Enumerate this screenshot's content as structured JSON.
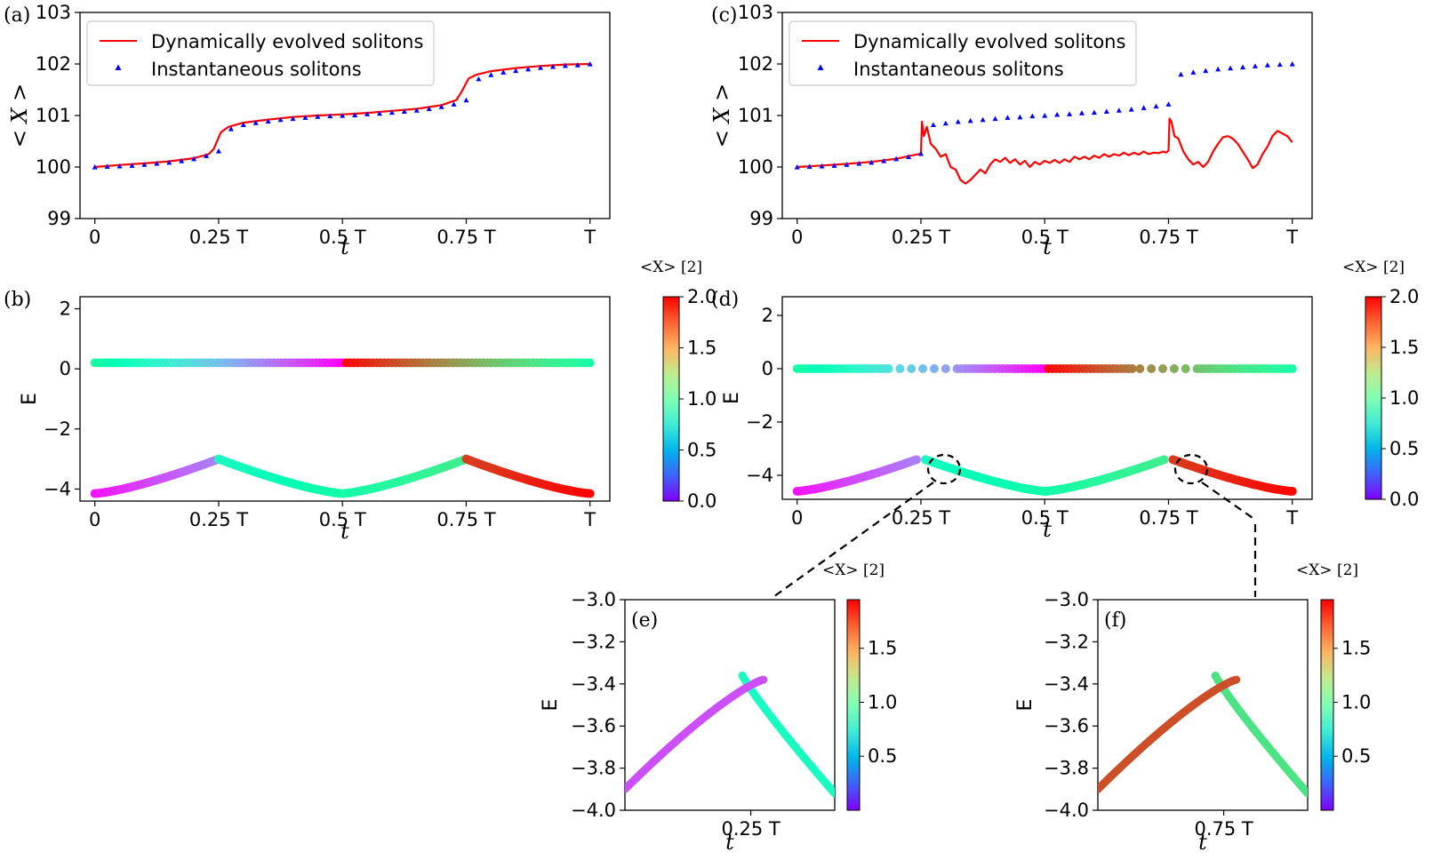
{
  "chart_data": [
    {
      "id": "a",
      "type": "line",
      "panel_label": "(a)",
      "xlabel": "t",
      "ylabel": "< X >",
      "ylim": [
        99,
        103
      ],
      "xlim": [
        -0.03,
        1.04
      ],
      "xticks": [
        0,
        0.25,
        0.5,
        0.75,
        1.0
      ],
      "xtick_labels": [
        "0",
        "0.25 T",
        "0.5 T",
        "0.75 T",
        "T"
      ],
      "yticks": [
        99,
        100,
        101,
        102,
        103
      ],
      "ytick_labels": [
        "99",
        "100",
        "101",
        "102",
        "103"
      ],
      "legend": {
        "position": "upper-left",
        "entries": [
          "Dynamically evolved solitons",
          "Instantaneous solitons"
        ]
      },
      "series": [
        {
          "name": "Dynamically evolved solitons",
          "style": "line",
          "color": "#ff0000",
          "x": [
            0,
            0.05,
            0.1,
            0.15,
            0.2,
            0.23,
            0.24,
            0.255,
            0.27,
            0.3,
            0.35,
            0.4,
            0.45,
            0.5,
            0.55,
            0.6,
            0.65,
            0.7,
            0.73,
            0.74,
            0.755,
            0.77,
            0.8,
            0.85,
            0.9,
            0.95,
            1.0
          ],
          "y": [
            100.0,
            100.04,
            100.07,
            100.11,
            100.17,
            100.25,
            100.35,
            100.68,
            100.78,
            100.86,
            100.92,
            100.97,
            101.0,
            101.02,
            101.05,
            101.09,
            101.13,
            101.2,
            101.3,
            101.45,
            101.72,
            101.79,
            101.86,
            101.92,
            101.96,
            101.99,
            102.0
          ]
        },
        {
          "name": "Instantaneous solitons",
          "style": "triangle",
          "color": "#0000ff",
          "x": [
            0,
            0.025,
            0.05,
            0.075,
            0.1,
            0.125,
            0.15,
            0.175,
            0.2,
            0.225,
            0.25,
            0.275,
            0.3,
            0.325,
            0.35,
            0.375,
            0.4,
            0.425,
            0.45,
            0.475,
            0.5,
            0.525,
            0.55,
            0.575,
            0.6,
            0.625,
            0.65,
            0.675,
            0.7,
            0.725,
            0.75,
            0.775,
            0.8,
            0.825,
            0.85,
            0.875,
            0.9,
            0.925,
            0.95,
            0.975,
            1.0
          ],
          "y": [
            100.0,
            100.01,
            100.02,
            100.03,
            100.05,
            100.07,
            100.09,
            100.12,
            100.16,
            100.22,
            100.31,
            100.74,
            100.82,
            100.86,
            100.89,
            100.92,
            100.94,
            100.96,
            100.98,
            100.99,
            101.0,
            101.01,
            101.03,
            101.04,
            101.06,
            101.08,
            101.1,
            101.13,
            101.17,
            101.22,
            101.3,
            101.71,
            101.79,
            101.84,
            101.87,
            101.9,
            101.93,
            101.95,
            101.97,
            101.98,
            102.0
          ]
        }
      ]
    },
    {
      "id": "c",
      "type": "line",
      "panel_label": "(c)",
      "xlabel": "t",
      "ylabel": "< X >",
      "ylim": [
        99,
        103
      ],
      "xlim": [
        -0.03,
        1.04
      ],
      "xticks": [
        0,
        0.25,
        0.5,
        0.75,
        1.0
      ],
      "xtick_labels": [
        "0",
        "0.25 T",
        "0.5 T",
        "0.75 T",
        "T"
      ],
      "yticks": [
        99,
        100,
        101,
        102,
        103
      ],
      "ytick_labels": [
        "99",
        "100",
        "101",
        "102",
        "103"
      ],
      "legend": {
        "position": "upper-left",
        "entries": [
          "Dynamically evolved solitons",
          "Instantaneous solitons"
        ]
      },
      "series": [
        {
          "name": "Dynamically evolved solitons",
          "style": "line",
          "color": "#ff0000",
          "x": [
            0,
            0.05,
            0.1,
            0.15,
            0.2,
            0.23,
            0.25,
            0.252,
            0.256,
            0.262,
            0.27,
            0.28,
            0.29,
            0.3,
            0.31,
            0.32,
            0.33,
            0.34,
            0.35,
            0.36,
            0.37,
            0.38,
            0.39,
            0.4,
            0.41,
            0.42,
            0.43,
            0.44,
            0.45,
            0.46,
            0.47,
            0.48,
            0.49,
            0.5,
            0.51,
            0.52,
            0.53,
            0.54,
            0.55,
            0.56,
            0.57,
            0.58,
            0.59,
            0.6,
            0.61,
            0.62,
            0.63,
            0.64,
            0.65,
            0.66,
            0.67,
            0.68,
            0.69,
            0.7,
            0.71,
            0.72,
            0.73,
            0.74,
            0.745,
            0.75,
            0.752,
            0.756,
            0.762,
            0.77,
            0.78,
            0.79,
            0.8,
            0.81,
            0.82,
            0.83,
            0.84,
            0.85,
            0.86,
            0.87,
            0.88,
            0.89,
            0.9,
            0.91,
            0.92,
            0.93,
            0.94,
            0.95,
            0.96,
            0.97,
            0.98,
            0.99,
            1.0
          ],
          "y": [
            100.0,
            100.03,
            100.06,
            100.1,
            100.16,
            100.22,
            100.26,
            100.88,
            100.6,
            100.78,
            100.45,
            100.35,
            100.2,
            100.25,
            100.0,
            99.95,
            99.75,
            99.68,
            99.75,
            99.85,
            99.95,
            99.88,
            100.05,
            100.15,
            100.1,
            100.18,
            100.08,
            100.15,
            100.05,
            100.12,
            100.0,
            100.1,
            100.05,
            100.12,
            100.08,
            100.14,
            100.08,
            100.15,
            100.1,
            100.2,
            100.15,
            100.2,
            100.15,
            100.22,
            100.18,
            100.25,
            100.2,
            100.25,
            100.22,
            100.28,
            100.23,
            100.28,
            100.24,
            100.3,
            100.25,
            100.28,
            100.27,
            100.3,
            100.28,
            100.32,
            100.94,
            100.88,
            100.6,
            100.55,
            100.3,
            100.15,
            100.05,
            100.1,
            100.0,
            100.1,
            100.3,
            100.45,
            100.58,
            100.6,
            100.55,
            100.45,
            100.3,
            100.15,
            99.98,
            100.05,
            100.25,
            100.4,
            100.6,
            100.7,
            100.65,
            100.6,
            100.48
          ]
        },
        {
          "name": "Instantaneous solitons",
          "style": "triangle",
          "color": "#0000ff",
          "x": [
            0,
            0.025,
            0.05,
            0.075,
            0.1,
            0.125,
            0.15,
            0.175,
            0.2,
            0.225,
            0.25,
            0.275,
            0.3,
            0.325,
            0.35,
            0.375,
            0.4,
            0.425,
            0.45,
            0.475,
            0.5,
            0.525,
            0.55,
            0.575,
            0.6,
            0.625,
            0.65,
            0.675,
            0.7,
            0.725,
            0.75,
            0.775,
            0.8,
            0.825,
            0.85,
            0.875,
            0.9,
            0.925,
            0.95,
            0.975,
            1.0
          ],
          "y": [
            100.0,
            100.01,
            100.02,
            100.03,
            100.05,
            100.07,
            100.09,
            100.12,
            100.16,
            100.2,
            100.26,
            100.82,
            100.85,
            100.88,
            100.9,
            100.92,
            100.94,
            100.96,
            100.97,
            100.99,
            101.0,
            101.02,
            101.03,
            101.05,
            101.06,
            101.08,
            101.1,
            101.12,
            101.15,
            101.18,
            101.22,
            101.8,
            101.84,
            101.87,
            101.9,
            101.92,
            101.94,
            101.96,
            101.98,
            101.99,
            102.0
          ]
        }
      ]
    },
    {
      "id": "b",
      "type": "scatter",
      "panel_label": "(b)",
      "xlabel": "t",
      "ylabel": "E",
      "ylim": [
        -4.4,
        2.4
      ],
      "xlim": [
        -0.03,
        1.04
      ],
      "xticks": [
        0,
        0.25,
        0.5,
        0.75,
        1.0
      ],
      "xtick_labels": [
        "0",
        "0.25 T",
        "0.5 T",
        "0.75 T",
        "T"
      ],
      "yticks": [
        2,
        0,
        -2,
        -4
      ],
      "ytick_labels": [
        "2",
        "0",
        "−2",
        "−4"
      ],
      "colorbar": {
        "label": "<X> [2]",
        "range": [
          0.0,
          2.0
        ],
        "ticks": [
          0.0,
          0.5,
          1.0,
          1.5,
          2.0
        ],
        "tick_labels": [
          "0.0",
          "0.5",
          "1.0",
          "1.5",
          "2.0"
        ],
        "colormap": "rainbow"
      },
      "bands": [
        {
          "name": "upper",
          "E_min": 0.2,
          "E_max": 0.2,
          "gap": false
        },
        {
          "name": "lower",
          "E_min": -4.15,
          "E_max": -3.0,
          "gap": false
        }
      ]
    },
    {
      "id": "d",
      "type": "scatter",
      "panel_label": "(d)",
      "xlabel": "t",
      "ylabel": "E",
      "ylim": [
        -4.9,
        2.7
      ],
      "xlim": [
        -0.03,
        1.04
      ],
      "xticks": [
        0,
        0.25,
        0.5,
        0.75,
        1.0
      ],
      "xtick_labels": [
        "0",
        "0.25 T",
        "0.5 T",
        "0.75 T",
        "T"
      ],
      "yticks": [
        2,
        0,
        -2,
        -4
      ],
      "ytick_labels": [
        "2",
        "0",
        "−2",
        "−4"
      ],
      "colorbar": {
        "label": "<X> [2]",
        "range": [
          0.0,
          2.0
        ],
        "ticks": [
          0.0,
          0.5,
          1.0,
          1.5,
          2.0
        ],
        "tick_labels": [
          "0.0",
          "0.5",
          "1.0",
          "1.5",
          "2.0"
        ],
        "colormap": "rainbow"
      },
      "bands": [
        {
          "name": "upper",
          "E_min": 0.0,
          "E_max": 0.0,
          "gap": true
        },
        {
          "name": "lower",
          "E_min": -4.6,
          "E_max": -3.35,
          "gap": true
        }
      ]
    },
    {
      "id": "e",
      "type": "scatter",
      "panel_label": "(e)",
      "xlabel": "t",
      "ylabel": "E",
      "ylim": [
        -4.0,
        -3.0
      ],
      "xlim": [
        0.19,
        0.29
      ],
      "xticks": [
        0.25
      ],
      "xtick_labels": [
        "0.25 T"
      ],
      "yticks": [
        -3.0,
        -3.2,
        -3.4,
        -3.6,
        -3.8,
        -4.0
      ],
      "ytick_labels": [
        "−3.0",
        "−3.2",
        "−3.4",
        "−3.6",
        "−3.8",
        "−4.0"
      ],
      "colorbar": {
        "label": "<X> [2]",
        "range": [
          0.0,
          1.95
        ],
        "ticks": [
          0.5,
          1.0,
          1.5
        ],
        "tick_labels": [
          "0.5",
          "1.0",
          "1.5"
        ],
        "colormap": "rainbow"
      }
    },
    {
      "id": "f",
      "type": "scatter",
      "panel_label": "(f)",
      "xlabel": "t",
      "ylabel": "E",
      "ylim": [
        -4.0,
        -3.0
      ],
      "xlim": [
        0.69,
        0.79
      ],
      "xticks": [
        0.75
      ],
      "xtick_labels": [
        "0.75 T"
      ],
      "yticks": [
        -3.0,
        -3.2,
        -3.4,
        -3.6,
        -3.8,
        -4.0
      ],
      "ytick_labels": [
        "−3.0",
        "−3.2",
        "−3.4",
        "−3.6",
        "−3.8",
        "−4.0"
      ],
      "colorbar": {
        "label": "<X> [2]",
        "range": [
          0.0,
          1.95
        ],
        "ticks": [
          0.5,
          1.0,
          1.5
        ],
        "tick_labels": [
          "0.5",
          "1.0",
          "1.5"
        ],
        "colormap": "rainbow"
      }
    }
  ]
}
